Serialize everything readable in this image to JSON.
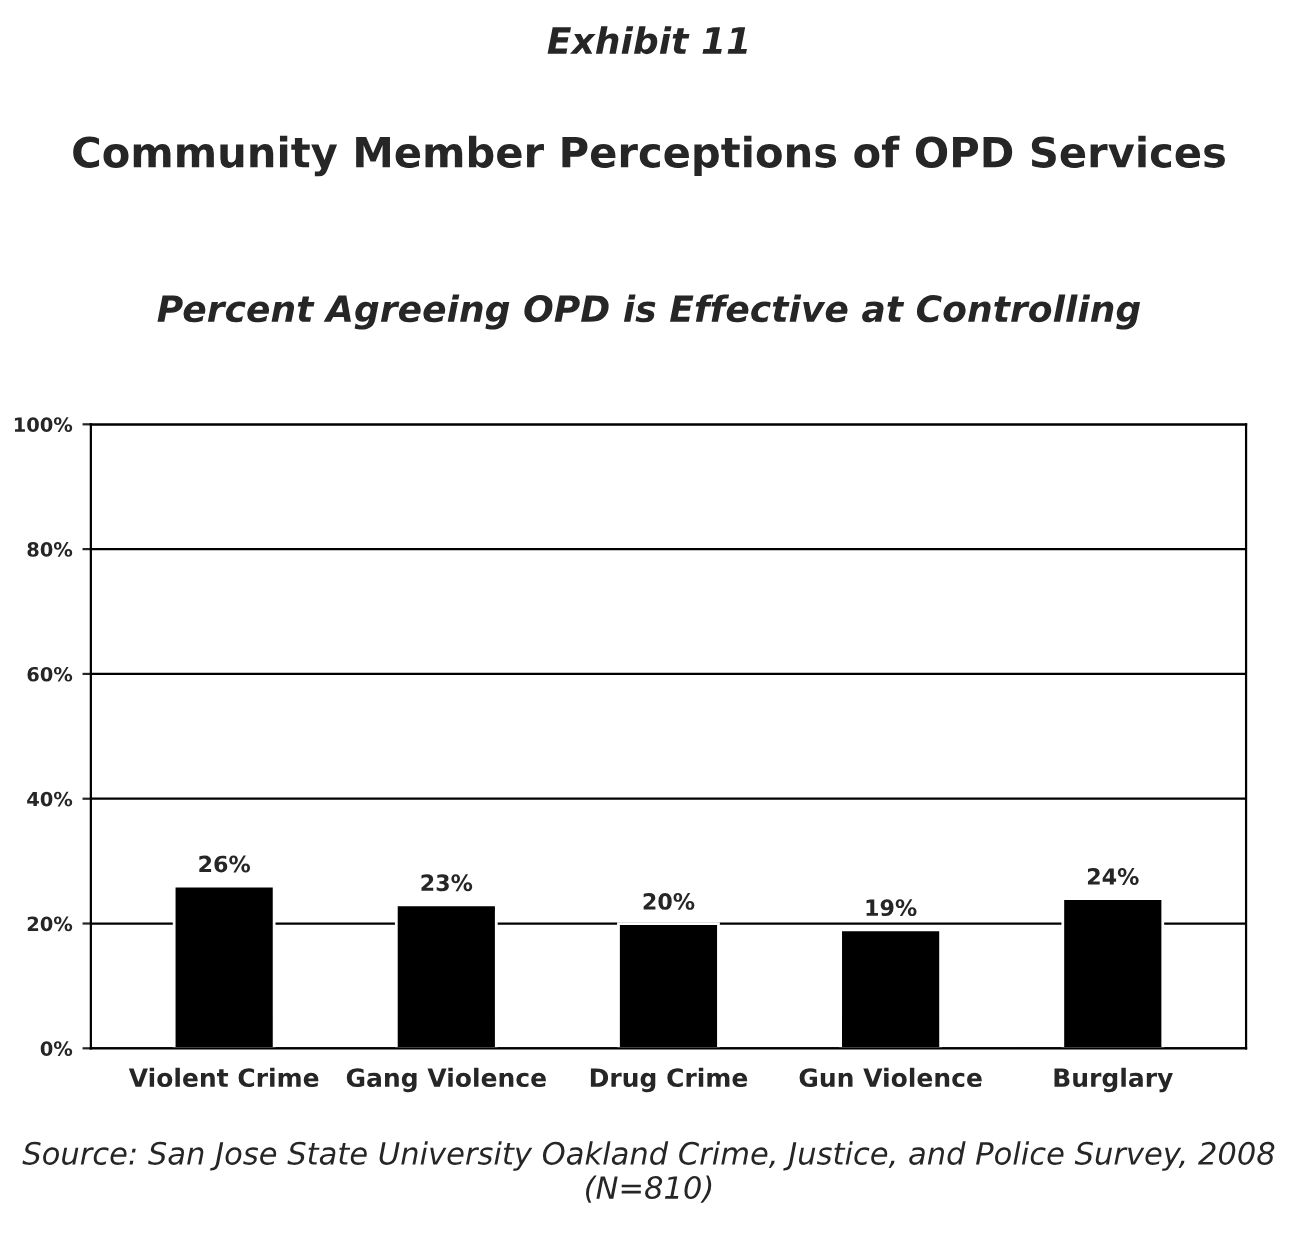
{
  "chart_data": {
    "type": "bar",
    "title": "Community Member Perceptions of OPD Services",
    "subtitle": "Percent Agreeing OPD is Effective at Controlling",
    "annotations": [
      "Exhibit 11",
      "Source: San Jose State University Oakland Crime, Justice, and Police Survey, 2008 (N=810)"
    ],
    "categories": [
      "Violent Crime",
      "Gang Violence",
      "Drug Crime",
      "Gun Violence",
      "Burglary"
    ],
    "values": [
      26,
      23,
      20,
      19,
      24
    ],
    "value_labels": [
      "26%",
      "23%",
      "20%",
      "19%",
      "24%"
    ],
    "color": "#000000",
    "ylim": [
      0,
      100
    ],
    "yticks": [
      {
        "value": 0,
        "label": "0%"
      },
      {
        "value": 20,
        "label": "20%"
      },
      {
        "value": 40,
        "label": "40%"
      },
      {
        "value": 60,
        "label": "60%"
      },
      {
        "value": 80,
        "label": "80%"
      },
      {
        "value": 100,
        "label": "100%"
      }
    ],
    "grid": "y",
    "legend": false
  }
}
